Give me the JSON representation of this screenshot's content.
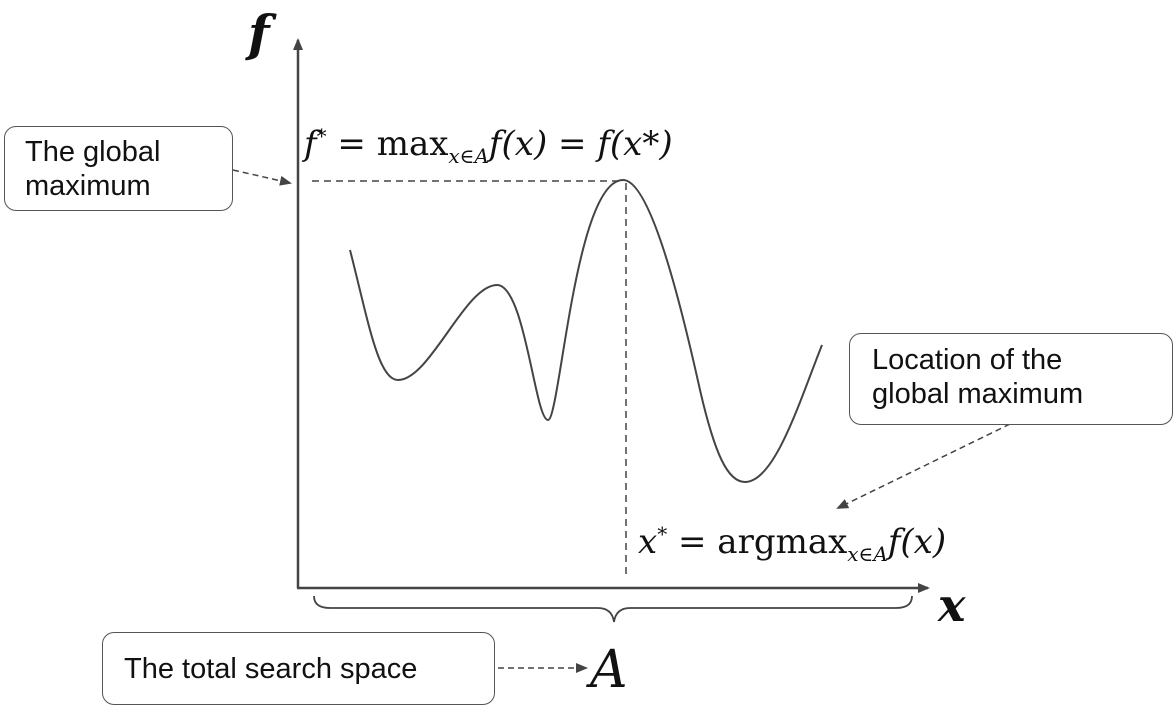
{
  "callouts": {
    "global_max": [
      "The global",
      "maximum"
    ],
    "location": [
      "Location of the",
      "global maximum"
    ],
    "search_space": "The total search space"
  },
  "axes": {
    "y_label": "f",
    "x_label": "x",
    "domain_label": "A"
  },
  "equations": {
    "fstar": {
      "lhs": "f",
      "lhs_sup": "*",
      "eq1": " = ",
      "op": "max",
      "sub": "x∈A",
      "fx": "f(x)",
      "eq2": " = ",
      "rhs": "f(x*)"
    },
    "xstar": {
      "lhs": "x",
      "lhs_sup": "*",
      "eq": " = ",
      "op": "argmax",
      "sub": "x∈A",
      "fx": "f(x)"
    }
  },
  "colors": {
    "line": "#444444",
    "text": "#111111",
    "box_border": "#555555"
  }
}
